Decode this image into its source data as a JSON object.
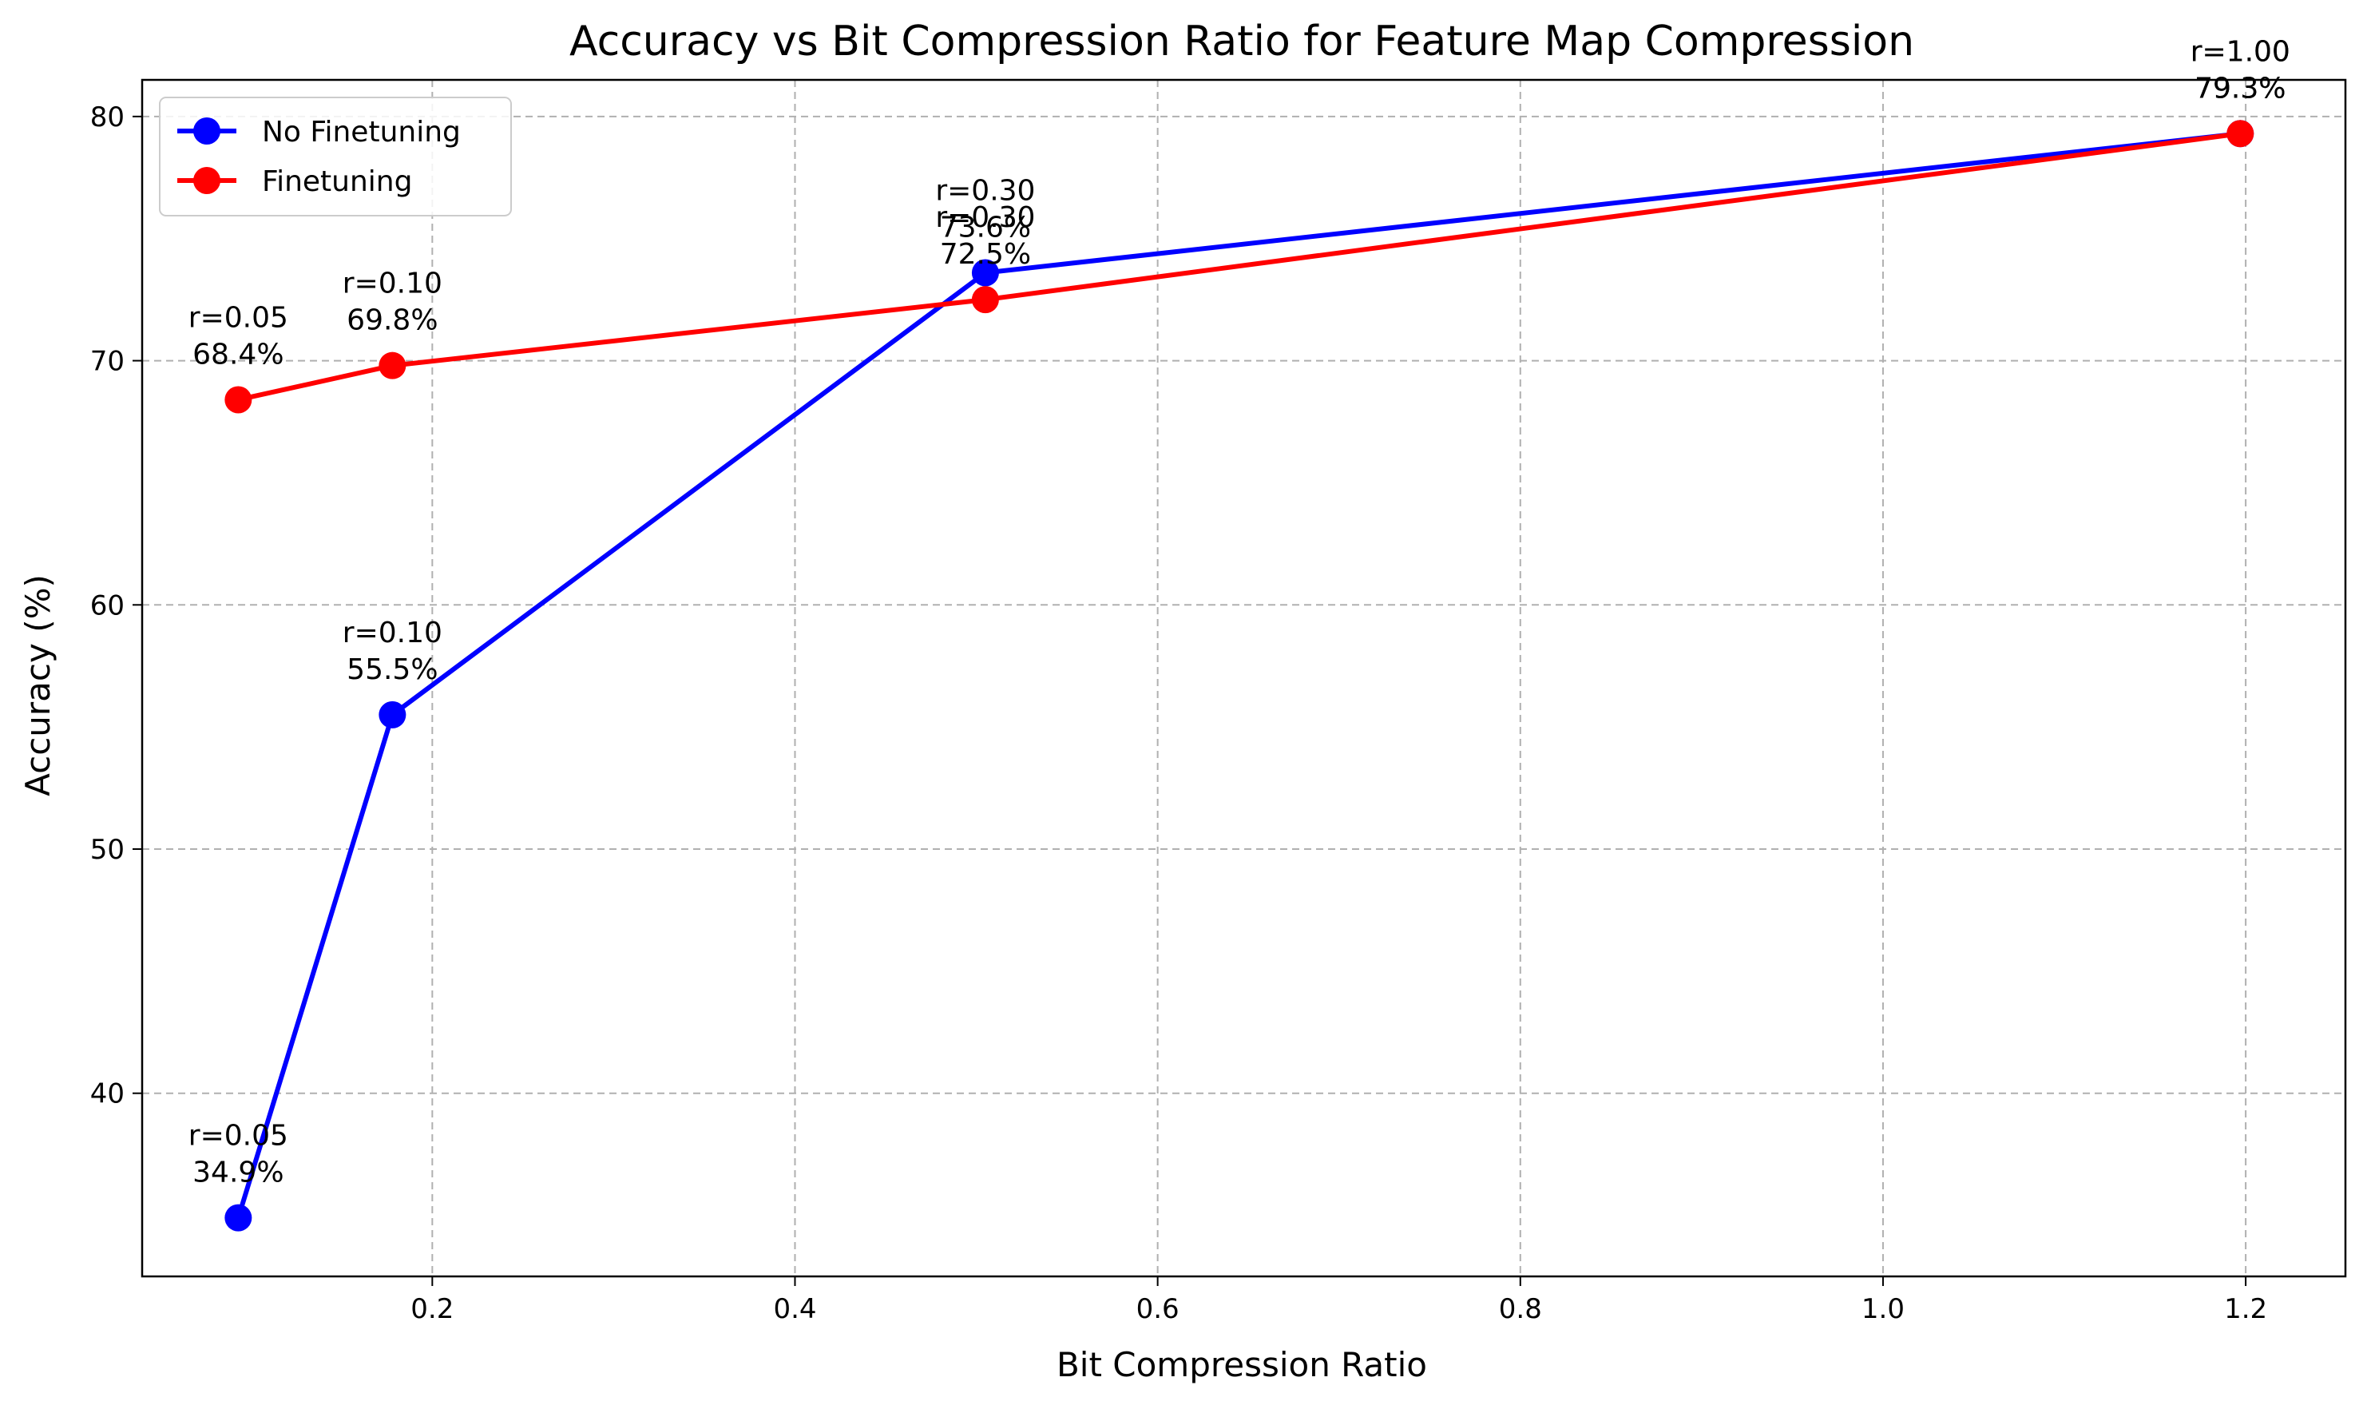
{
  "chart_data": {
    "type": "line",
    "title": "Accuracy vs Bit Compression Ratio for Feature Map Compression",
    "xlabel": "Bit Compression Ratio",
    "ylabel": "Accuracy (%)",
    "xlim": [
      0.04,
      1.255
    ],
    "ylim": [
      32.5,
      81.5
    ],
    "xticks": [
      0.2,
      0.4,
      0.6,
      0.8,
      1.0,
      1.2
    ],
    "xtick_labels": [
      "0.2",
      "0.4",
      "0.6",
      "0.8",
      "1.0",
      "1.2"
    ],
    "yticks": [
      40,
      50,
      60,
      70,
      80
    ],
    "ytick_labels": [
      "40",
      "50",
      "60",
      "70",
      "80"
    ],
    "grid": true,
    "legend_position": "top-left",
    "series": [
      {
        "name": "No Finetuning",
        "color": "#0000ff",
        "x": [
          0.093,
          0.178,
          0.505,
          1.197
        ],
        "y": [
          34.9,
          55.5,
          73.6,
          79.3
        ],
        "annotations": [
          [
            "r=0.05",
            "34.9%"
          ],
          [
            "r=0.10",
            "55.5%"
          ],
          [
            "r=0.30",
            "73.6%"
          ],
          [
            "r=1.00",
            "79.3%"
          ]
        ]
      },
      {
        "name": "Finetuning",
        "color": "#ff0000",
        "x": [
          0.093,
          0.178,
          0.505,
          1.197
        ],
        "y": [
          68.4,
          69.8,
          72.5,
          79.3
        ],
        "annotations": [
          [
            "r=0.05",
            "68.4%"
          ],
          [
            "r=0.10",
            "69.8%"
          ],
          [
            "r=0.30",
            "72.5%"
          ],
          [
            "r=1.00",
            "79.3%"
          ]
        ]
      }
    ]
  }
}
